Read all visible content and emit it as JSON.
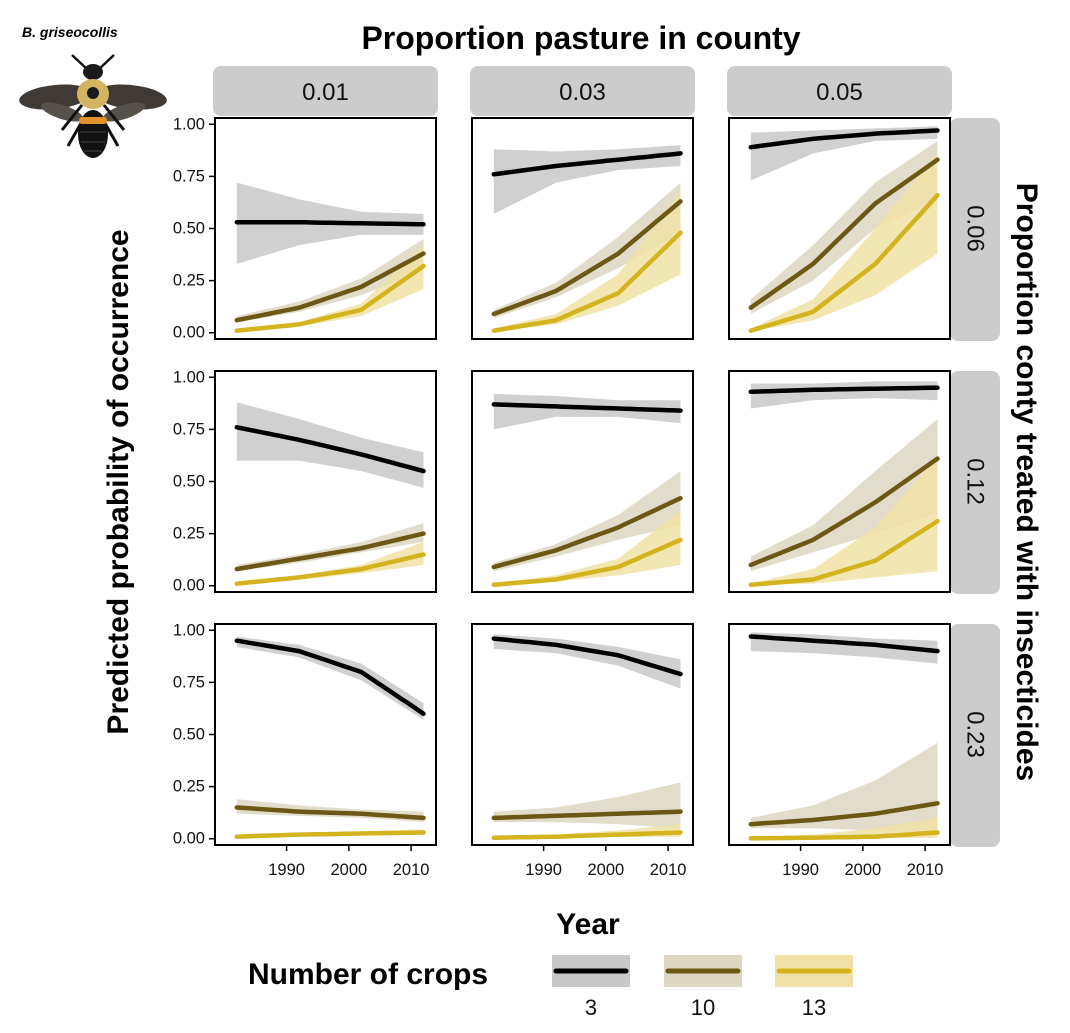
{
  "species_label": "B. griseocollis",
  "chart_data": {
    "type": "line",
    "title": "Proportion pasture in county",
    "xlabel": "Year",
    "ylabel": "Predicted probability of occurrence",
    "right_label": "Proportion conty treated with insecticides",
    "col_facets": [
      "0.01",
      "0.03",
      "0.05"
    ],
    "row_facets": [
      "0.06",
      "0.12",
      "0.23"
    ],
    "xlim": [
      1978.5,
      2014
    ],
    "ylim": [
      -0.03,
      1.03
    ],
    "x_ticks": [
      1990,
      2000,
      2010
    ],
    "x_tick_labels": [
      "1990",
      "2000",
      "2010"
    ],
    "y_ticks": [
      0,
      0.25,
      0.5,
      0.75,
      1
    ],
    "y_tick_labels": [
      "0.00",
      "0.25",
      "0.50",
      "0.75",
      "1.00"
    ],
    "x": [
      1982,
      1992,
      2002,
      2012
    ],
    "legend": {
      "title": "Number of crops",
      "position": "bottom",
      "entries": [
        {
          "label": "3",
          "color": "#000000",
          "fill": "#c8c8c8"
        },
        {
          "label": "10",
          "color": "#6b5814",
          "fill": "#ddd7c2"
        },
        {
          "label": "13",
          "color": "#d4b41e",
          "fill": "#f0e2a6"
        }
      ]
    },
    "panels": [
      {
        "row": 0,
        "col": 0,
        "series": [
          {
            "mean": [
              0.53,
              0.53,
              0.525,
              0.52
            ],
            "lo": [
              0.33,
              0.42,
              0.47,
              0.47
            ],
            "hi": [
              0.72,
              0.64,
              0.58,
              0.57
            ]
          },
          {
            "mean": [
              0.06,
              0.12,
              0.22,
              0.38
            ],
            "lo": [
              0.05,
              0.1,
              0.18,
              0.3
            ],
            "hi": [
              0.08,
              0.15,
              0.26,
              0.45
            ]
          },
          {
            "mean": [
              0.01,
              0.04,
              0.11,
              0.32
            ],
            "lo": [
              0.005,
              0.03,
              0.08,
              0.21
            ],
            "hi": [
              0.02,
              0.05,
              0.14,
              0.42
            ]
          }
        ]
      },
      {
        "row": 0,
        "col": 1,
        "series": [
          {
            "mean": [
              0.76,
              0.8,
              0.83,
              0.86
            ],
            "lo": [
              0.57,
              0.72,
              0.78,
              0.8
            ],
            "hi": [
              0.88,
              0.87,
              0.88,
              0.9
            ]
          },
          {
            "mean": [
              0.09,
              0.2,
              0.38,
              0.63
            ],
            "lo": [
              0.07,
              0.17,
              0.31,
              0.48
            ],
            "hi": [
              0.11,
              0.24,
              0.46,
              0.72
            ]
          },
          {
            "mean": [
              0.01,
              0.06,
              0.19,
              0.48
            ],
            "lo": [
              0.005,
              0.04,
              0.13,
              0.28
            ],
            "hi": [
              0.02,
              0.09,
              0.28,
              0.68
            ]
          }
        ]
      },
      {
        "row": 0,
        "col": 2,
        "series": [
          {
            "mean": [
              0.89,
              0.93,
              0.955,
              0.97
            ],
            "lo": [
              0.73,
              0.86,
              0.92,
              0.93
            ],
            "hi": [
              0.96,
              0.97,
              0.98,
              0.99
            ]
          },
          {
            "mean": [
              0.12,
              0.33,
              0.62,
              0.83
            ],
            "lo": [
              0.09,
              0.25,
              0.5,
              0.64
            ],
            "hi": [
              0.16,
              0.42,
              0.72,
              0.92
            ]
          },
          {
            "mean": [
              0.01,
              0.1,
              0.33,
              0.66
            ],
            "lo": [
              0.005,
              0.06,
              0.18,
              0.38
            ],
            "hi": [
              0.02,
              0.16,
              0.5,
              0.86
            ]
          }
        ]
      },
      {
        "row": 1,
        "col": 0,
        "series": [
          {
            "mean": [
              0.76,
              0.7,
              0.63,
              0.55
            ],
            "lo": [
              0.6,
              0.6,
              0.55,
              0.47
            ],
            "hi": [
              0.88,
              0.8,
              0.71,
              0.64
            ]
          },
          {
            "mean": [
              0.08,
              0.13,
              0.18,
              0.25
            ],
            "lo": [
              0.07,
              0.11,
              0.16,
              0.21
            ],
            "hi": [
              0.1,
              0.15,
              0.21,
              0.3
            ]
          },
          {
            "mean": [
              0.01,
              0.04,
              0.08,
              0.15
            ],
            "lo": [
              0.005,
              0.03,
              0.06,
              0.1
            ],
            "hi": [
              0.02,
              0.05,
              0.1,
              0.21
            ]
          }
        ]
      },
      {
        "row": 1,
        "col": 1,
        "series": [
          {
            "mean": [
              0.87,
              0.86,
              0.85,
              0.84
            ],
            "lo": [
              0.75,
              0.81,
              0.81,
              0.78
            ],
            "hi": [
              0.92,
              0.91,
              0.89,
              0.89
            ]
          },
          {
            "mean": [
              0.09,
              0.17,
              0.28,
              0.42
            ],
            "lo": [
              0.07,
              0.14,
              0.22,
              0.29
            ],
            "hi": [
              0.11,
              0.2,
              0.34,
              0.55
            ]
          },
          {
            "mean": [
              0.005,
              0.03,
              0.09,
              0.22
            ],
            "lo": [
              0.003,
              0.02,
              0.05,
              0.1
            ],
            "hi": [
              0.01,
              0.05,
              0.13,
              0.36
            ]
          }
        ]
      },
      {
        "row": 1,
        "col": 2,
        "series": [
          {
            "mean": [
              0.93,
              0.94,
              0.945,
              0.95
            ],
            "lo": [
              0.85,
              0.89,
              0.9,
              0.89
            ],
            "hi": [
              0.97,
              0.97,
              0.98,
              0.98
            ]
          },
          {
            "mean": [
              0.1,
              0.22,
              0.4,
              0.61
            ],
            "lo": [
              0.07,
              0.16,
              0.25,
              0.35
            ],
            "hi": [
              0.14,
              0.29,
              0.55,
              0.8
            ]
          },
          {
            "mean": [
              0.005,
              0.03,
              0.12,
              0.31
            ],
            "lo": [
              0.002,
              0.01,
              0.04,
              0.07
            ],
            "hi": [
              0.01,
              0.08,
              0.28,
              0.62
            ]
          }
        ]
      },
      {
        "row": 2,
        "col": 0,
        "series": [
          {
            "mean": [
              0.95,
              0.9,
              0.8,
              0.6
            ],
            "lo": [
              0.92,
              0.87,
              0.76,
              0.57
            ],
            "hi": [
              0.97,
              0.93,
              0.84,
              0.65
            ]
          },
          {
            "mean": [
              0.15,
              0.13,
              0.12,
              0.1
            ],
            "lo": [
              0.12,
              0.11,
              0.1,
              0.08
            ],
            "hi": [
              0.19,
              0.16,
              0.14,
              0.13
            ]
          },
          {
            "mean": [
              0.01,
              0.02,
              0.025,
              0.03
            ],
            "lo": [
              0.008,
              0.015,
              0.02,
              0.02
            ],
            "hi": [
              0.015,
              0.025,
              0.035,
              0.045
            ]
          }
        ]
      },
      {
        "row": 2,
        "col": 1,
        "series": [
          {
            "mean": [
              0.96,
              0.93,
              0.88,
              0.79
            ],
            "lo": [
              0.91,
              0.89,
              0.83,
              0.72
            ],
            "hi": [
              0.98,
              0.96,
              0.92,
              0.86
            ]
          },
          {
            "mean": [
              0.1,
              0.11,
              0.12,
              0.13
            ],
            "lo": [
              0.08,
              0.08,
              0.07,
              0.05
            ],
            "hi": [
              0.13,
              0.15,
              0.2,
              0.27
            ]
          },
          {
            "mean": [
              0.005,
              0.01,
              0.02,
              0.03
            ],
            "lo": [
              0.003,
              0.005,
              0.008,
              0.01
            ],
            "hi": [
              0.01,
              0.02,
              0.04,
              0.07
            ]
          }
        ]
      },
      {
        "row": 2,
        "col": 2,
        "series": [
          {
            "mean": [
              0.97,
              0.95,
              0.93,
              0.9
            ],
            "lo": [
              0.9,
              0.89,
              0.87,
              0.84
            ],
            "hi": [
              0.99,
              0.98,
              0.96,
              0.95
            ]
          },
          {
            "mean": [
              0.07,
              0.09,
              0.12,
              0.17
            ],
            "lo": [
              0.05,
              0.05,
              0.04,
              0.03
            ],
            "hi": [
              0.1,
              0.16,
              0.28,
              0.46
            ]
          },
          {
            "mean": [
              0.002,
              0.005,
              0.01,
              0.03
            ],
            "lo": [
              0.001,
              0.002,
              0.003,
              0.004
            ],
            "hi": [
              0.005,
              0.02,
              0.05,
              0.1
            ]
          }
        ]
      }
    ]
  }
}
